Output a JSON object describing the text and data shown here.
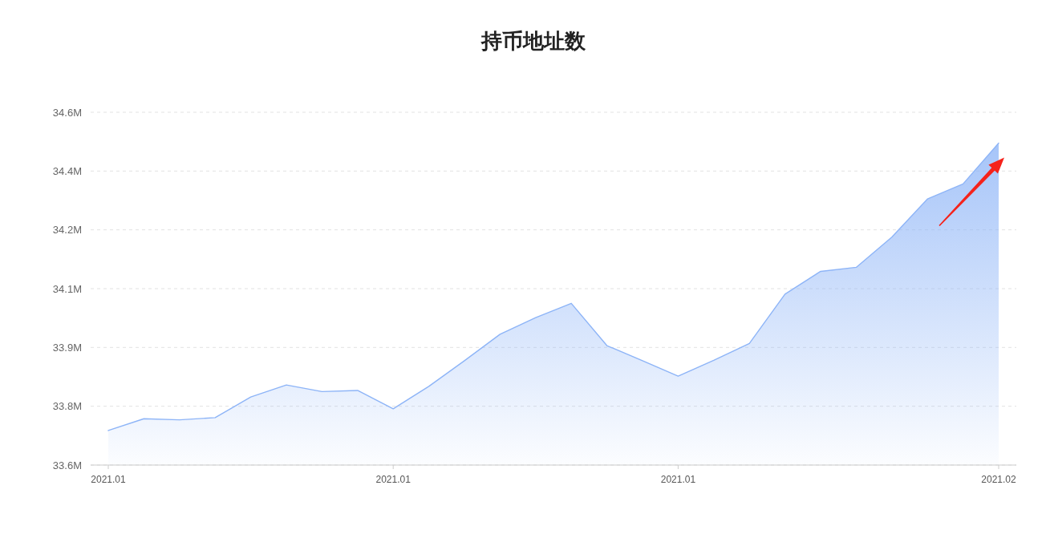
{
  "chart_data": {
    "type": "area",
    "title": "持币地址数",
    "categories": [
      "2021.01",
      null,
      null,
      null,
      null,
      null,
      null,
      null,
      "2021.01",
      null,
      null,
      null,
      null,
      null,
      null,
      null,
      "2021.01",
      null,
      null,
      null,
      null,
      null,
      null,
      null,
      null,
      "2021.02"
    ],
    "series": [
      {
        "color": "#8db4f7",
        "values": [
          33.694,
          33.726,
          33.723,
          33.729,
          33.785,
          33.818,
          33.8,
          33.803,
          33.753,
          33.814,
          33.884,
          33.956,
          34.001,
          34.04,
          33.925,
          33.884,
          33.842,
          33.885,
          33.931,
          34.065,
          34.127,
          34.138,
          34.22,
          34.324,
          34.365,
          34.476
        ]
      }
    ],
    "ylim": [
      33.6,
      34.56
    ],
    "yticks": [
      {
        "value": 33.6,
        "label": "33.6M"
      },
      {
        "value": 33.76,
        "label": "33.8M"
      },
      {
        "value": 33.92,
        "label": "33.9M"
      },
      {
        "value": 34.08,
        "label": "34.1M"
      },
      {
        "value": 34.24,
        "label": "34.2M"
      },
      {
        "value": 34.4,
        "label": "34.4M"
      },
      {
        "value": 34.56,
        "label": "34.6M"
      }
    ],
    "grid": "y"
  }
}
